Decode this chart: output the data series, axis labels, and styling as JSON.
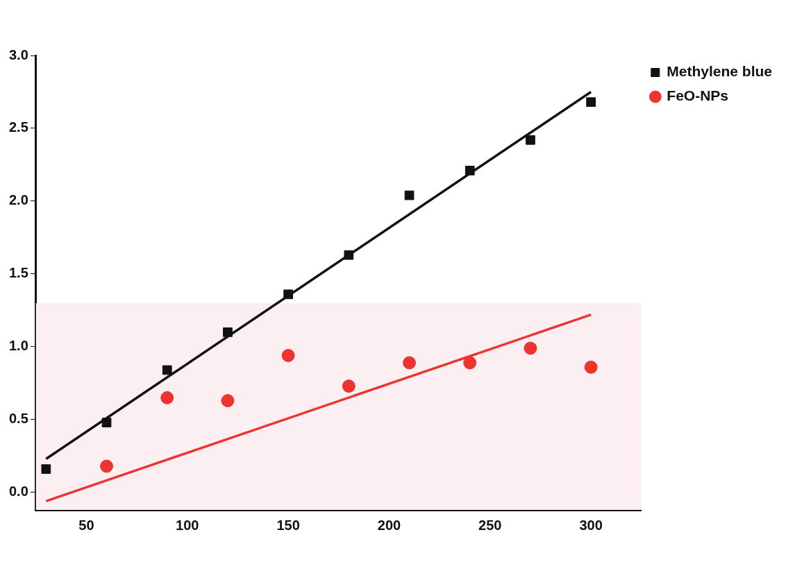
{
  "chart_data": {
    "type": "scatter",
    "xlim": [
      25,
      325
    ],
    "xticks": [
      50,
      100,
      150,
      200,
      250,
      300
    ],
    "ylim": [
      -0.12,
      3.0
    ],
    "yticks": [
      {
        "value": 0,
        "label": "0.0"
      },
      0.5,
      {
        "value": 1,
        "label": "1.0"
      },
      1.5,
      {
        "value": 2,
        "label": "2.0"
      },
      2.5,
      {
        "value": 3,
        "label": "3.0"
      }
    ],
    "grid": false,
    "legend": "top right",
    "series": [
      {
        "name": "Methylene blue",
        "color": "#111111",
        "marker": "square",
        "x": [
          30,
          60,
          90,
          120,
          150,
          180,
          210,
          240,
          270,
          300
        ],
        "values": [
          0.16,
          0.48,
          0.84,
          1.1,
          1.36,
          1.63,
          2.04,
          2.21,
          2.42,
          2.68
        ]
      },
      {
        "name": "FeO-NPs",
        "color": "#ee3333",
        "marker": "circle",
        "x": [
          60,
          90,
          120,
          150,
          180,
          210,
          240,
          270,
          300
        ],
        "values": [
          0.18,
          0.65,
          0.63,
          0.94,
          0.73,
          0.89,
          0.89,
          0.99,
          0.86
        ]
      },
      {
        "type": "line",
        "color": "#111111",
        "marker": "none",
        "x": [
          30,
          300
        ],
        "values": [
          0.23,
          2.75
        ]
      },
      {
        "type": "line",
        "color": "#ee3333",
        "marker": "none",
        "x": [
          30,
          300
        ],
        "values": [
          -0.06,
          1.22
        ]
      }
    ],
    "bands": [
      {
        "axis": "y",
        "from": -0.12,
        "to": 1.3,
        "color": "#fbeff1"
      }
    ]
  }
}
